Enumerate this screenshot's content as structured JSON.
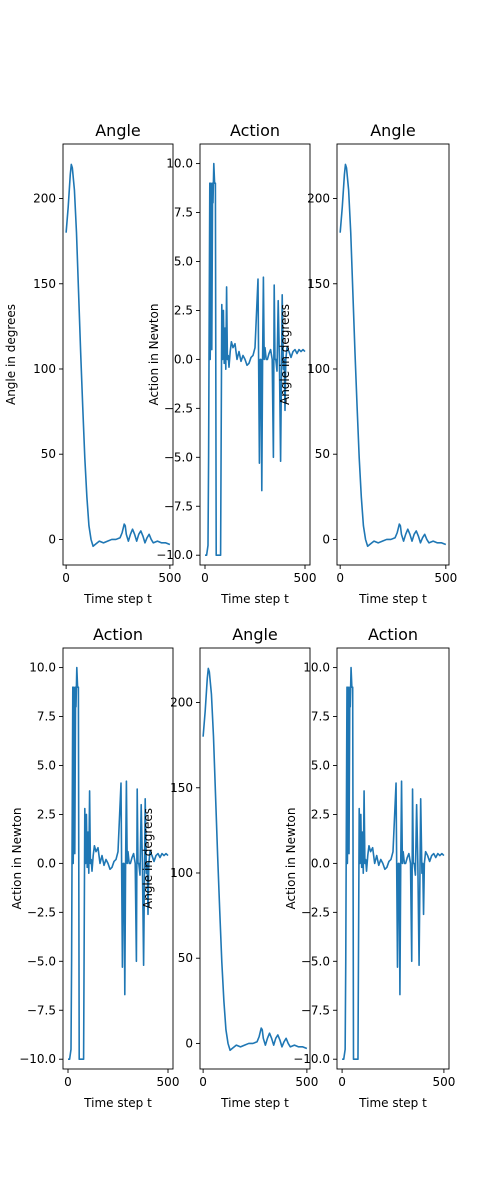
{
  "chart_data": [
    {
      "type": "line",
      "title": "Angle",
      "xlabel": "Time step t",
      "ylabel": "Angle in degrees",
      "xlim": [
        -15,
        515
      ],
      "ylim": [
        -15,
        232
      ],
      "xticks": [
        0,
        500
      ],
      "yticks": [
        0,
        50,
        100,
        150,
        200
      ],
      "ytick_labels": [
        "0",
        "50",
        "100",
        "150",
        "200"
      ],
      "series": [
        {
          "x": [
            0,
            10,
            20,
            25,
            30,
            40,
            50,
            60,
            70,
            80,
            90,
            100,
            110,
            120,
            130,
            140,
            160,
            180,
            200,
            220,
            240,
            260,
            270,
            280,
            285,
            290,
            300,
            310,
            320,
            330,
            340,
            350,
            360,
            370,
            380,
            390,
            400,
            410,
            420,
            440,
            460,
            480,
            500
          ],
          "y": [
            180,
            195,
            214,
            220,
            218,
            205,
            180,
            145,
            110,
            78,
            48,
            25,
            8,
            0,
            -4,
            -3,
            -1,
            -2,
            -1,
            0,
            0,
            1,
            4,
            9,
            8,
            3,
            -1,
            3,
            6,
            3,
            -1,
            3,
            5,
            2,
            -2,
            1,
            3,
            0,
            -2,
            -1,
            -2,
            -2,
            -3
          ]
        }
      ]
    },
    {
      "type": "line",
      "title": "Action",
      "xlabel": "Time step t",
      "ylabel": "Action in Newton",
      "xlim": [
        -25,
        525
      ],
      "ylim": [
        -10.5,
        11
      ],
      "xticks": [
        0,
        500
      ],
      "yticks": [
        -10.0,
        -7.5,
        -5.0,
        -2.5,
        0.0,
        2.5,
        5.0,
        7.5,
        10.0
      ],
      "ytick_labels": [
        "−10.0",
        "−7.5",
        "−5.0",
        "−2.5",
        "0.0",
        "2.5",
        "5.0",
        "7.5",
        "10.0"
      ],
      "series": [
        {
          "x": [
            0,
            8,
            15,
            18,
            20,
            24,
            26,
            28,
            30,
            34,
            38,
            40,
            44,
            48,
            52,
            56,
            60,
            64,
            70,
            74,
            78,
            84,
            88,
            92,
            96,
            100,
            104,
            108,
            112,
            116,
            120,
            126,
            132,
            140,
            150,
            160,
            170,
            180,
            190,
            200,
            210,
            220,
            230,
            240,
            250,
            265,
            272,
            276,
            280,
            284,
            288,
            292,
            296,
            300,
            306,
            312,
            320,
            328,
            336,
            342,
            346,
            350,
            354,
            360,
            366,
            372,
            378,
            386,
            392,
            396,
            400,
            404,
            410,
            420,
            430,
            440,
            450,
            460,
            470,
            480,
            490,
            500
          ],
          "y": [
            -10,
            -10,
            -9.5,
            -5,
            0,
            9,
            0,
            2,
            9,
            0.5,
            9,
            8,
            10,
            9,
            9,
            -10,
            -10,
            -10,
            -10,
            -10,
            -10,
            2.8,
            0,
            2.5,
            -0.2,
            1.6,
            -0.5,
            3.7,
            0,
            0.2,
            -0.4,
            0.4,
            0.9,
            0.6,
            0.8,
            0,
            0.4,
            -0.1,
            0.2,
            0,
            -0.3,
            -0.2,
            0.1,
            0.2,
            0.6,
            4.1,
            -5.3,
            0,
            0,
            -6.7,
            0,
            4.2,
            0,
            0.6,
            0,
            0,
            0.3,
            0.5,
            0,
            -5,
            3.8,
            0,
            0,
            -0.6,
            3,
            0,
            -5.2,
            3.3,
            -0.5,
            0,
            -2.6,
            0,
            0.6,
            0.4,
            0.1,
            0.4,
            0.5,
            0.3,
            0.5,
            0.4,
            0.5,
            0.4
          ]
        }
      ]
    },
    {
      "type": "line",
      "title": "Angle",
      "xlabel": "Time step t",
      "ylabel": "Angle in degrees",
      "xlim": [
        -15,
        515
      ],
      "ylim": [
        -15,
        232
      ],
      "xticks": [
        0,
        500
      ],
      "yticks": [
        0,
        50,
        100,
        150,
        200
      ],
      "ytick_labels": [
        "0",
        "50",
        "100",
        "150",
        "200"
      ],
      "series": [
        {
          "x": [
            0,
            10,
            20,
            25,
            30,
            40,
            50,
            60,
            70,
            80,
            90,
            100,
            110,
            120,
            130,
            140,
            160,
            180,
            200,
            220,
            240,
            260,
            270,
            280,
            285,
            290,
            300,
            310,
            320,
            330,
            340,
            350,
            360,
            370,
            380,
            390,
            400,
            410,
            420,
            440,
            460,
            480,
            500
          ],
          "y": [
            180,
            195,
            214,
            220,
            218,
            205,
            180,
            145,
            110,
            78,
            48,
            25,
            8,
            0,
            -4,
            -3,
            -1,
            -2,
            -1,
            0,
            0,
            1,
            4,
            9,
            8,
            3,
            -1,
            3,
            6,
            3,
            -1,
            3,
            5,
            2,
            -2,
            1,
            3,
            0,
            -2,
            -1,
            -2,
            -2,
            -3
          ]
        }
      ]
    },
    {
      "type": "line",
      "title": "Action",
      "xlabel": "Time step t",
      "ylabel": "Action in Newton",
      "xlim": [
        -25,
        525
      ],
      "ylim": [
        -10.5,
        11
      ],
      "xticks": [
        0,
        500
      ],
      "yticks": [
        -10.0,
        -7.5,
        -5.0,
        -2.5,
        0.0,
        2.5,
        5.0,
        7.5,
        10.0
      ],
      "ytick_labels": [
        "−10.0",
        "−7.5",
        "−5.0",
        "−2.5",
        "0.0",
        "2.5",
        "5.0",
        "7.5",
        "10.0"
      ],
      "series": [
        {
          "x": [
            0,
            8,
            15,
            18,
            20,
            24,
            26,
            28,
            30,
            34,
            38,
            40,
            44,
            48,
            52,
            56,
            60,
            64,
            70,
            74,
            78,
            84,
            88,
            92,
            96,
            100,
            104,
            108,
            112,
            116,
            120,
            126,
            132,
            140,
            150,
            160,
            170,
            180,
            190,
            200,
            210,
            220,
            230,
            240,
            250,
            265,
            272,
            276,
            280,
            284,
            288,
            292,
            296,
            300,
            306,
            312,
            320,
            328,
            336,
            342,
            346,
            350,
            354,
            360,
            366,
            372,
            378,
            386,
            392,
            396,
            400,
            404,
            410,
            420,
            430,
            440,
            450,
            460,
            470,
            480,
            490,
            500
          ],
          "y": [
            -10,
            -10,
            -9.5,
            -5,
            0,
            9,
            0,
            2,
            9,
            0.5,
            9,
            8,
            10,
            9,
            9,
            -10,
            -10,
            -10,
            -10,
            -10,
            -10,
            2.8,
            0,
            2.5,
            -0.2,
            1.6,
            -0.5,
            3.7,
            0,
            0.2,
            -0.4,
            0.4,
            0.9,
            0.6,
            0.8,
            0,
            0.4,
            -0.1,
            0.2,
            0,
            -0.3,
            -0.2,
            0.1,
            0.2,
            0.6,
            4.1,
            -5.3,
            0,
            0,
            -6.7,
            0,
            4.2,
            0,
            0.6,
            0,
            0,
            0.3,
            0.5,
            0,
            -5,
            3.8,
            0,
            0,
            -0.6,
            3,
            0,
            -5.2,
            3.3,
            -0.5,
            0,
            -2.6,
            0,
            0.6,
            0.4,
            0.1,
            0.4,
            0.5,
            0.3,
            0.5,
            0.4,
            0.5,
            0.4
          ]
        }
      ]
    },
    {
      "type": "line",
      "title": "Angle",
      "xlabel": "Time step t",
      "ylabel": "Angle in degrees",
      "xlim": [
        -15,
        515
      ],
      "ylim": [
        -15,
        232
      ],
      "xticks": [
        0,
        500
      ],
      "yticks": [
        0,
        50,
        100,
        150,
        200
      ],
      "ytick_labels": [
        "0",
        "50",
        "100",
        "150",
        "200"
      ],
      "series": [
        {
          "x": [
            0,
            10,
            20,
            25,
            30,
            40,
            50,
            60,
            70,
            80,
            90,
            100,
            110,
            120,
            130,
            140,
            160,
            180,
            200,
            220,
            240,
            260,
            270,
            280,
            285,
            290,
            300,
            310,
            320,
            330,
            340,
            350,
            360,
            370,
            380,
            390,
            400,
            410,
            420,
            440,
            460,
            480,
            500
          ],
          "y": [
            180,
            195,
            214,
            220,
            218,
            205,
            180,
            145,
            110,
            78,
            48,
            25,
            8,
            0,
            -4,
            -3,
            -1,
            -2,
            -1,
            0,
            0,
            1,
            4,
            9,
            8,
            3,
            -1,
            3,
            6,
            3,
            -1,
            3,
            5,
            2,
            -2,
            1,
            3,
            0,
            -2,
            -1,
            -2,
            -2,
            -3
          ]
        }
      ]
    },
    {
      "type": "line",
      "title": "Action",
      "xlabel": "Time step t",
      "ylabel": "Action in Newton",
      "xlim": [
        -25,
        525
      ],
      "ylim": [
        -10.5,
        11
      ],
      "xticks": [
        0,
        500
      ],
      "yticks": [
        -10.0,
        -7.5,
        -5.0,
        -2.5,
        0.0,
        2.5,
        5.0,
        7.5,
        10.0
      ],
      "ytick_labels": [
        "−10.0",
        "−7.5",
        "−5.0",
        "−2.5",
        "0.0",
        "2.5",
        "5.0",
        "7.5",
        "10.0"
      ],
      "series": [
        {
          "x": [
            0,
            8,
            15,
            18,
            20,
            24,
            26,
            28,
            30,
            34,
            38,
            40,
            44,
            48,
            52,
            56,
            60,
            64,
            70,
            74,
            78,
            84,
            88,
            92,
            96,
            100,
            104,
            108,
            112,
            116,
            120,
            126,
            132,
            140,
            150,
            160,
            170,
            180,
            190,
            200,
            210,
            220,
            230,
            240,
            250,
            265,
            272,
            276,
            280,
            284,
            288,
            292,
            296,
            300,
            306,
            312,
            320,
            328,
            336,
            342,
            346,
            350,
            354,
            360,
            366,
            372,
            378,
            386,
            392,
            396,
            400,
            404,
            410,
            420,
            430,
            440,
            450,
            460,
            470,
            480,
            490,
            500
          ],
          "y": [
            -10,
            -10,
            -9.5,
            -5,
            0,
            9,
            0,
            2,
            9,
            0.5,
            9,
            8,
            10,
            9,
            9,
            -10,
            -10,
            -10,
            -10,
            -10,
            -10,
            2.8,
            0,
            2.5,
            -0.2,
            1.6,
            -0.5,
            3.7,
            0,
            0.2,
            -0.4,
            0.4,
            0.9,
            0.6,
            0.8,
            0,
            0.4,
            -0.1,
            0.2,
            0,
            -0.3,
            -0.2,
            0.1,
            0.2,
            0.6,
            4.1,
            -5.3,
            0,
            0,
            -6.7,
            0,
            4.2,
            0,
            0.6,
            0,
            0,
            0.3,
            0.5,
            0,
            -5,
            3.8,
            0,
            0,
            -0.6,
            3,
            0,
            -5.2,
            3.3,
            -0.5,
            0,
            -2.6,
            0,
            0.6,
            0.4,
            0.1,
            0.4,
            0.5,
            0.3,
            0.5,
            0.4,
            0.5,
            0.4
          ]
        }
      ]
    }
  ],
  "style": {
    "line_color": "#1f77b4",
    "frame_color": "#000000",
    "background": "#ffffff"
  }
}
